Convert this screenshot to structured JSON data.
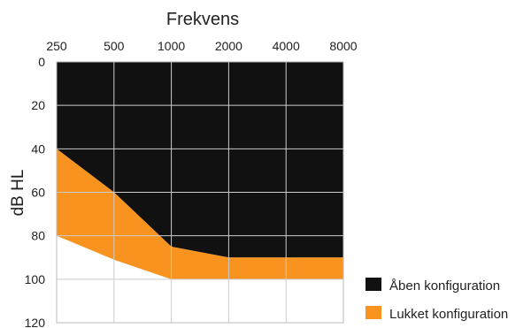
{
  "chart_data": {
    "type": "area",
    "title": "Frekvens",
    "xlabel": "Frekvens",
    "ylabel": "dB HL",
    "x": [
      250,
      500,
      1000,
      2000,
      4000,
      8000
    ],
    "x_tick_labels": [
      "250",
      "500",
      "1000",
      "2000",
      "4000",
      "8000"
    ],
    "x_scale": "log",
    "x_axis_position": "top",
    "y_tick_labels": [
      "0",
      "20",
      "40",
      "60",
      "80",
      "100",
      "120"
    ],
    "ylim": [
      0,
      120
    ],
    "y_inverted": true,
    "grid": true,
    "legend_position": "bottom-right",
    "series": [
      {
        "name": "Åben konfiguration",
        "color": "#111111",
        "fill_from": 0,
        "values": [
          40,
          60,
          85,
          90,
          90,
          90
        ]
      },
      {
        "name": "Lukket konfiguration",
        "color": "#F7931E",
        "lower": [
          40,
          60,
          85,
          90,
          90,
          90
        ],
        "values": [
          80,
          91,
          100,
          100,
          100,
          100
        ]
      }
    ]
  }
}
